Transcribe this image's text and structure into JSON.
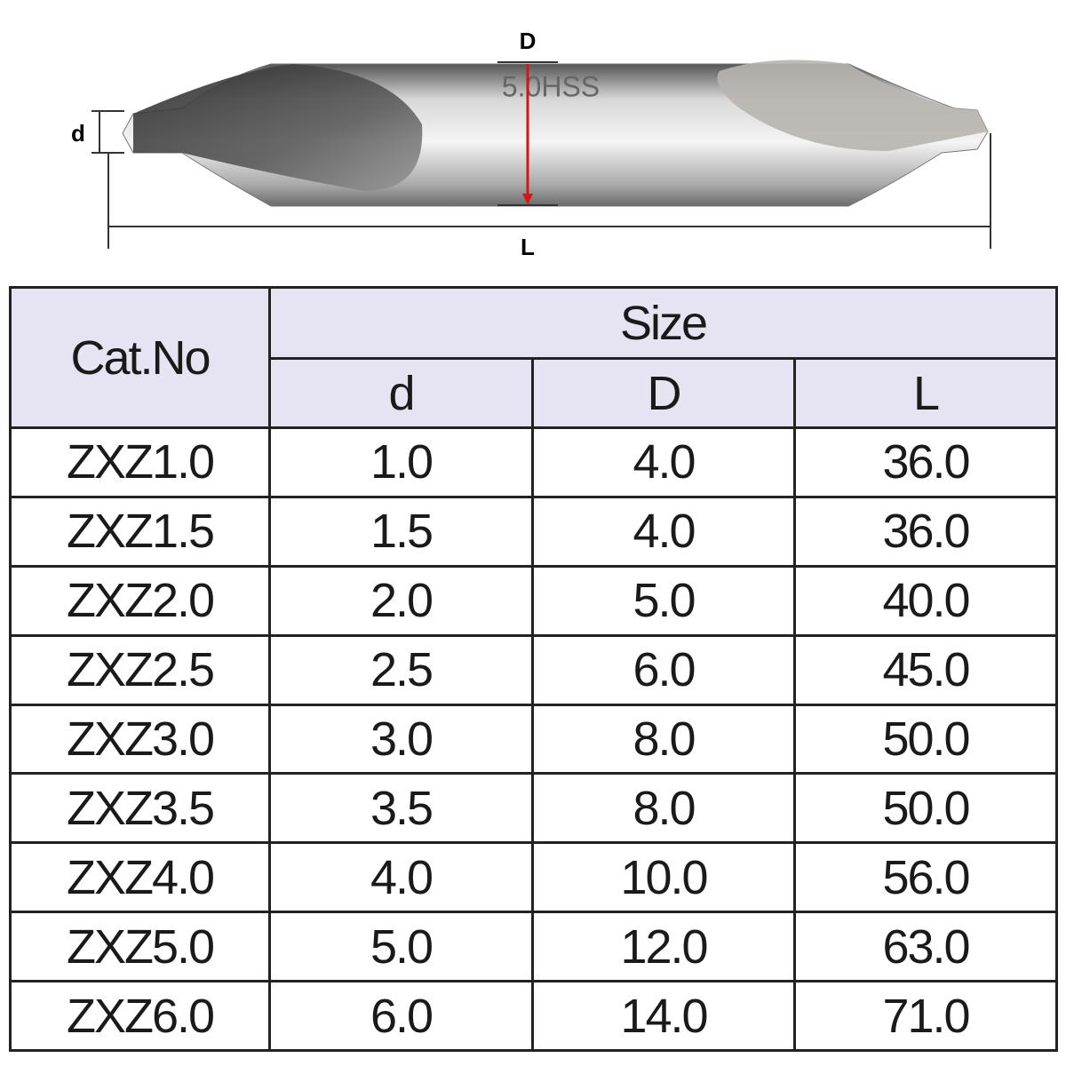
{
  "diagram": {
    "d_label": "d",
    "D_label": "D",
    "L_label": "L",
    "engraving": "5.0HSS"
  },
  "table": {
    "header": {
      "cat_no": "Cat.No",
      "size": "Size",
      "columns": [
        "d",
        "D",
        "L"
      ]
    },
    "rows": [
      [
        "ZXZ1.0",
        "1.0",
        "4.0",
        "36.0"
      ],
      [
        "ZXZ1.5",
        "1.5",
        "4.0",
        "36.0"
      ],
      [
        "ZXZ2.0",
        "2.0",
        "5.0",
        "40.0"
      ],
      [
        "ZXZ2.5",
        "2.5",
        "6.0",
        "45.0"
      ],
      [
        "ZXZ3.0",
        "3.0",
        "8.0",
        "50.0"
      ],
      [
        "ZXZ3.5",
        "3.5",
        "8.0",
        "50.0"
      ],
      [
        "ZXZ4.0",
        "4.0",
        "10.0",
        "56.0"
      ],
      [
        "ZXZ5.0",
        "5.0",
        "12.0",
        "63.0"
      ],
      [
        "ZXZ6.0",
        "6.0",
        "14.0",
        "71.0"
      ]
    ]
  }
}
